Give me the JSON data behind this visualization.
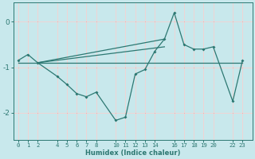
{
  "xlabel": "Humidex (Indice chaleur)",
  "bg_color": "#c8e8ec",
  "line_color": "#2d7872",
  "main_x": [
    0,
    1,
    2,
    4,
    5,
    6,
    7,
    8,
    10,
    11,
    12,
    13,
    14,
    15,
    16,
    17,
    18,
    19,
    20,
    22,
    23
  ],
  "main_y": [
    -0.85,
    -0.72,
    -0.9,
    -1.2,
    -1.38,
    -1.58,
    -1.65,
    -1.55,
    -2.17,
    -2.1,
    -1.15,
    -1.05,
    -0.65,
    -0.38,
    0.2,
    -0.5,
    -0.6,
    -0.6,
    -0.55,
    -1.75,
    -0.85
  ],
  "flat_line_x": [
    0,
    23
  ],
  "flat_line_y": [
    -0.9,
    -0.9
  ],
  "rise_line1_x": [
    2,
    15
  ],
  "rise_line1_y": [
    -0.9,
    -0.38
  ],
  "rise_line2_x": [
    2,
    15
  ],
  "rise_line2_y": [
    -0.9,
    -0.55
  ],
  "xtick_positions": [
    0,
    1,
    2,
    4,
    5,
    6,
    7,
    8,
    10,
    11,
    12,
    13,
    14,
    16,
    17,
    18,
    19,
    20,
    22,
    23
  ],
  "ytick_positions": [
    0,
    -1,
    -2
  ],
  "ylim": [
    -2.6,
    0.42
  ],
  "xlim": [
    -0.5,
    24.0
  ]
}
